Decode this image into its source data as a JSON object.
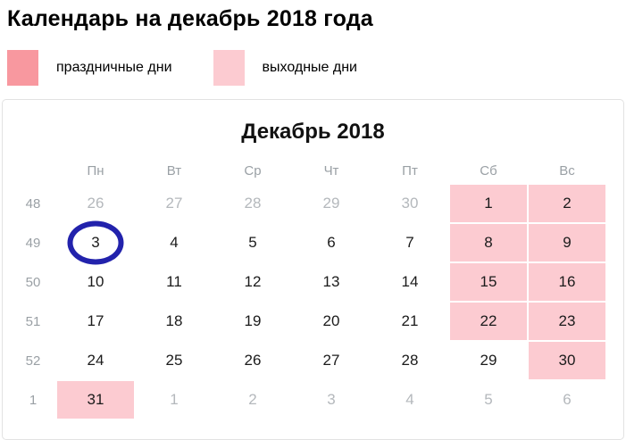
{
  "page": {
    "title": "Календарь на декабрь 2018 года"
  },
  "legend": {
    "items": [
      {
        "name": "holiday",
        "label": "праздничные дни",
        "color": "#f8989f"
      },
      {
        "name": "weekend",
        "label": "выходные дни",
        "color": "#fccbd1"
      }
    ]
  },
  "calendar": {
    "title": "Декабрь 2018",
    "day_headers": [
      "Пн",
      "Вт",
      "Ср",
      "Чт",
      "Пт",
      "Сб",
      "Вс"
    ],
    "colors": {
      "weekend_bg": "#fccbd1",
      "holiday_bg": "#f8989f",
      "circle": "#2222ac",
      "muted_text": "#b4b8bc",
      "header_text": "#9aa0a5",
      "box_border": "#e2e2e2"
    },
    "circled_day": "3",
    "weeks": [
      {
        "week_number": "48",
        "days": [
          {
            "label": "26",
            "type": "other"
          },
          {
            "label": "27",
            "type": "other"
          },
          {
            "label": "28",
            "type": "other"
          },
          {
            "label": "29",
            "type": "other"
          },
          {
            "label": "30",
            "type": "other"
          },
          {
            "label": "1",
            "type": "weekend"
          },
          {
            "label": "2",
            "type": "weekend"
          }
        ]
      },
      {
        "week_number": "49",
        "days": [
          {
            "label": "3",
            "type": "work",
            "circled": true
          },
          {
            "label": "4",
            "type": "work"
          },
          {
            "label": "5",
            "type": "work"
          },
          {
            "label": "6",
            "type": "work"
          },
          {
            "label": "7",
            "type": "work"
          },
          {
            "label": "8",
            "type": "weekend"
          },
          {
            "label": "9",
            "type": "weekend"
          }
        ]
      },
      {
        "week_number": "50",
        "days": [
          {
            "label": "10",
            "type": "work"
          },
          {
            "label": "11",
            "type": "work"
          },
          {
            "label": "12",
            "type": "work"
          },
          {
            "label": "13",
            "type": "work"
          },
          {
            "label": "14",
            "type": "work"
          },
          {
            "label": "15",
            "type": "weekend"
          },
          {
            "label": "16",
            "type": "weekend"
          }
        ]
      },
      {
        "week_number": "51",
        "days": [
          {
            "label": "17",
            "type": "work"
          },
          {
            "label": "18",
            "type": "work"
          },
          {
            "label": "19",
            "type": "work"
          },
          {
            "label": "20",
            "type": "work"
          },
          {
            "label": "21",
            "type": "work"
          },
          {
            "label": "22",
            "type": "weekend"
          },
          {
            "label": "23",
            "type": "weekend"
          }
        ]
      },
      {
        "week_number": "52",
        "days": [
          {
            "label": "24",
            "type": "work"
          },
          {
            "label": "25",
            "type": "work"
          },
          {
            "label": "26",
            "type": "work"
          },
          {
            "label": "27",
            "type": "work"
          },
          {
            "label": "28",
            "type": "work"
          },
          {
            "label": "29",
            "type": "work"
          },
          {
            "label": "30",
            "type": "weekend"
          }
        ]
      },
      {
        "week_number": "1",
        "days": [
          {
            "label": "31",
            "type": "weekend"
          },
          {
            "label": "1",
            "type": "other"
          },
          {
            "label": "2",
            "type": "other"
          },
          {
            "label": "3",
            "type": "other"
          },
          {
            "label": "4",
            "type": "other"
          },
          {
            "label": "5",
            "type": "other"
          },
          {
            "label": "6",
            "type": "other"
          }
        ]
      }
    ]
  }
}
